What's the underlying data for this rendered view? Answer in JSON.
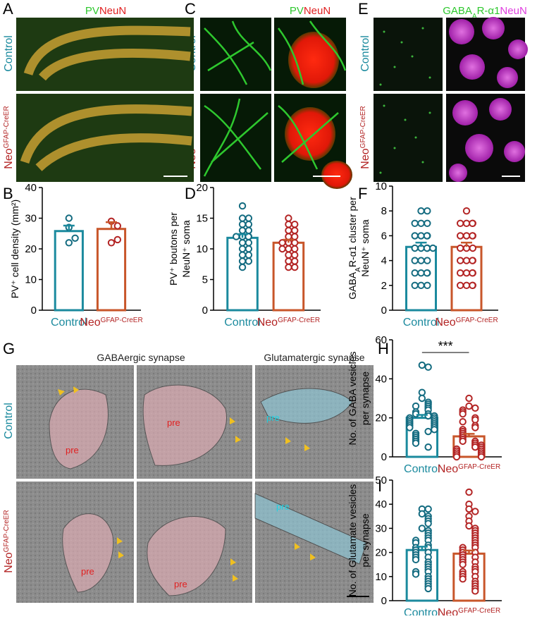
{
  "panel_labels": [
    "A",
    "B",
    "C",
    "D",
    "E",
    "F",
    "G",
    "H",
    "I"
  ],
  "image_titles": {
    "pv": "PV",
    "neun": "NeuN",
    "gaba": [
      {
        "text": "GABA"
      },
      {
        "text": "A",
        "sub": true
      },
      {
        "text": "R-α1"
      }
    ]
  },
  "row_labels": {
    "control": "Control",
    "neo": "Neo",
    "neo_sup": "GFAP-CreER"
  },
  "em": {
    "gaba_title": "GABAergic synapse",
    "glu_title": "Glutamatergic synapse",
    "pre": "pre"
  },
  "chart_data": [
    {
      "type": "bar",
      "ylabel": [
        "PV⁺ cell density (mm²)"
      ],
      "categories": [
        "Control",
        "Neo"
      ],
      "category_superscripts": [
        null,
        "GFAP-CreER"
      ],
      "values": [
        25.8,
        26.5
      ],
      "errors": [
        1.8,
        2.2
      ],
      "points": [
        [
          30,
          27,
          22,
          23.5
        ],
        [
          29,
          27.5,
          22,
          23
        ]
      ],
      "colors": [
        "#1b8a9e",
        "#c8562a"
      ],
      "point_colors": [
        "#136b80",
        "#b32424"
      ],
      "ylim": [
        0,
        40
      ],
      "yticks": [
        0,
        10,
        20,
        30,
        40
      ]
    },
    {
      "type": "bar",
      "ylabel": [
        "PV⁺ boutons per",
        "NeuN⁺ soma"
      ],
      "categories": [
        "Control",
        "Neo"
      ],
      "category_superscripts": [
        null,
        "GFAP-CreER"
      ],
      "values": [
        11.8,
        11
      ],
      "errors": [
        0.6,
        0.5
      ],
      "points": [
        [
          17,
          15,
          15,
          14,
          14,
          13,
          13,
          12,
          12,
          12,
          12,
          11,
          11,
          10,
          10,
          9,
          9,
          8,
          8,
          7
        ],
        [
          15,
          14,
          14,
          13,
          13,
          12,
          12,
          11,
          11,
          11,
          10,
          10,
          10,
          9,
          9,
          8,
          8,
          7,
          7
        ]
      ],
      "colors": [
        "#1b8a9e",
        "#c8562a"
      ],
      "point_colors": [
        "#136b80",
        "#b32424"
      ],
      "ylim": [
        0,
        20
      ],
      "yticks": [
        0,
        5,
        10,
        15,
        20
      ]
    },
    {
      "type": "bar",
      "ylabel": [
        [
          {
            "text": "GABA"
          },
          {
            "text": "A",
            "sub": true
          },
          {
            "text": "R-α1 cluster per"
          }
        ],
        "NeuN⁺ soma"
      ],
      "categories": [
        "Control",
        "Neo"
      ],
      "category_superscripts": [
        null,
        "GFAP-CreER"
      ],
      "values": [
        5.1,
        5.1
      ],
      "errors": [
        0.35,
        0.35
      ],
      "points": [
        [
          8,
          8,
          7,
          7,
          7,
          6,
          6,
          6,
          6,
          5,
          5,
          5,
          5,
          5,
          4,
          4,
          4,
          3,
          3,
          3,
          3,
          2,
          2,
          2
        ],
        [
          8,
          7,
          7,
          7,
          7,
          6,
          6,
          6,
          6,
          5,
          5,
          5,
          4,
          4,
          4,
          4,
          3,
          3,
          3,
          3,
          2,
          2,
          2,
          2
        ]
      ],
      "colors": [
        "#1b8a9e",
        "#c8562a"
      ],
      "point_colors": [
        "#136b80",
        "#b32424"
      ],
      "ylim": [
        0,
        10
      ],
      "yticks": [
        0,
        2,
        4,
        6,
        8,
        10
      ]
    },
    {
      "type": "bar",
      "ylabel": [
        "No. of GABA vesicles",
        "per synapse"
      ],
      "annotation": "***",
      "categories": [
        "Control",
        "Neo"
      ],
      "category_superscripts": [
        null,
        "GFAP-CreER"
      ],
      "values": [
        20,
        10.5
      ],
      "errors": [
        1.5,
        1.3
      ],
      "points": [
        [
          47,
          46,
          33,
          30,
          28,
          27,
          26,
          26,
          25,
          24,
          23,
          22,
          22,
          21,
          21,
          20,
          20,
          19,
          19,
          18,
          18,
          17,
          17,
          16,
          16,
          15,
          15,
          14,
          13,
          12,
          11,
          10,
          9,
          8,
          7,
          5
        ],
        [
          30,
          26,
          25,
          24,
          23,
          22,
          20,
          19,
          18,
          16,
          15,
          14,
          13,
          12,
          11,
          10,
          9,
          8,
          8,
          7,
          6,
          6,
          5,
          5,
          4,
          4,
          3,
          3,
          2,
          2,
          1,
          1,
          0,
          0
        ]
      ],
      "colors": [
        "#1b8a9e",
        "#c8562a"
      ],
      "point_colors": [
        "#136b80",
        "#b32424"
      ],
      "ylim": [
        0,
        60
      ],
      "yticks": [
        0,
        20,
        40,
        60
      ]
    },
    {
      "type": "bar",
      "ylabel": [
        "No. of Glutamate vesicles",
        "per synapse"
      ],
      "categories": [
        "Control",
        "Neo"
      ],
      "category_superscripts": [
        null,
        "GFAP-CreER"
      ],
      "values": [
        21,
        19.5
      ],
      "errors": [
        1.4,
        1.3
      ],
      "points": [
        [
          38,
          38,
          36,
          35,
          34,
          33,
          32,
          30,
          29,
          28,
          27,
          26,
          25,
          25,
          24,
          23,
          22,
          22,
          21,
          20,
          20,
          19,
          18,
          18,
          17,
          16,
          15,
          14,
          13,
          12,
          12,
          11,
          10,
          9,
          8,
          7,
          6,
          5
        ],
        [
          45,
          40,
          38,
          37,
          35,
          33,
          31,
          30,
          29,
          28,
          27,
          26,
          25,
          24,
          23,
          22,
          22,
          21,
          20,
          20,
          19,
          18,
          18,
          17,
          16,
          16,
          15,
          14,
          13,
          12,
          12,
          11,
          10,
          10,
          9,
          8,
          7,
          6,
          5,
          4
        ]
      ],
      "colors": [
        "#1b8a9e",
        "#c8562a"
      ],
      "point_colors": [
        "#136b80",
        "#b32424"
      ],
      "ylim": [
        0,
        50
      ],
      "yticks": [
        0,
        10,
        20,
        30,
        40,
        50
      ]
    }
  ]
}
